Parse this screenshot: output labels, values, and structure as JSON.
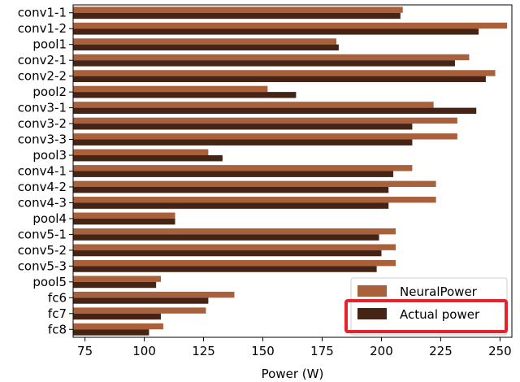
{
  "chart_data": {
    "type": "bar",
    "orientation": "horizontal",
    "categories": [
      "conv1-1",
      "conv1-2",
      "pool1",
      "conv2-1",
      "conv2-2",
      "pool2",
      "conv3-1",
      "conv3-2",
      "conv3-3",
      "pool3",
      "conv4-1",
      "conv4-2",
      "conv4-3",
      "pool4",
      "conv5-1",
      "conv5-2",
      "conv5-3",
      "pool5",
      "fc6",
      "fc7",
      "fc8"
    ],
    "series": [
      {
        "name": "NeuralPower",
        "color": "#a8613a",
        "values": [
          209,
          253,
          181,
          237,
          248,
          152,
          222,
          232,
          232,
          127,
          213,
          223,
          223,
          113,
          206,
          206,
          206,
          107,
          138,
          126,
          108
        ]
      },
      {
        "name": "Actual power",
        "color": "#452315",
        "values": [
          208,
          241,
          182,
          231,
          244,
          164,
          240,
          213,
          213,
          133,
          205,
          203,
          203,
          113,
          199,
          200,
          198,
          105,
          127,
          107,
          102
        ]
      }
    ],
    "xlabel": "Power (W)",
    "ylabel": "",
    "title": "",
    "xlim": [
      70,
      255
    ],
    "xticks": [
      75,
      100,
      125,
      150,
      175,
      200,
      225,
      250
    ],
    "grid": false,
    "legend_position": "bottom-right",
    "legend_highlight_series": "Actual power",
    "highlight_color": "#e8212b"
  }
}
